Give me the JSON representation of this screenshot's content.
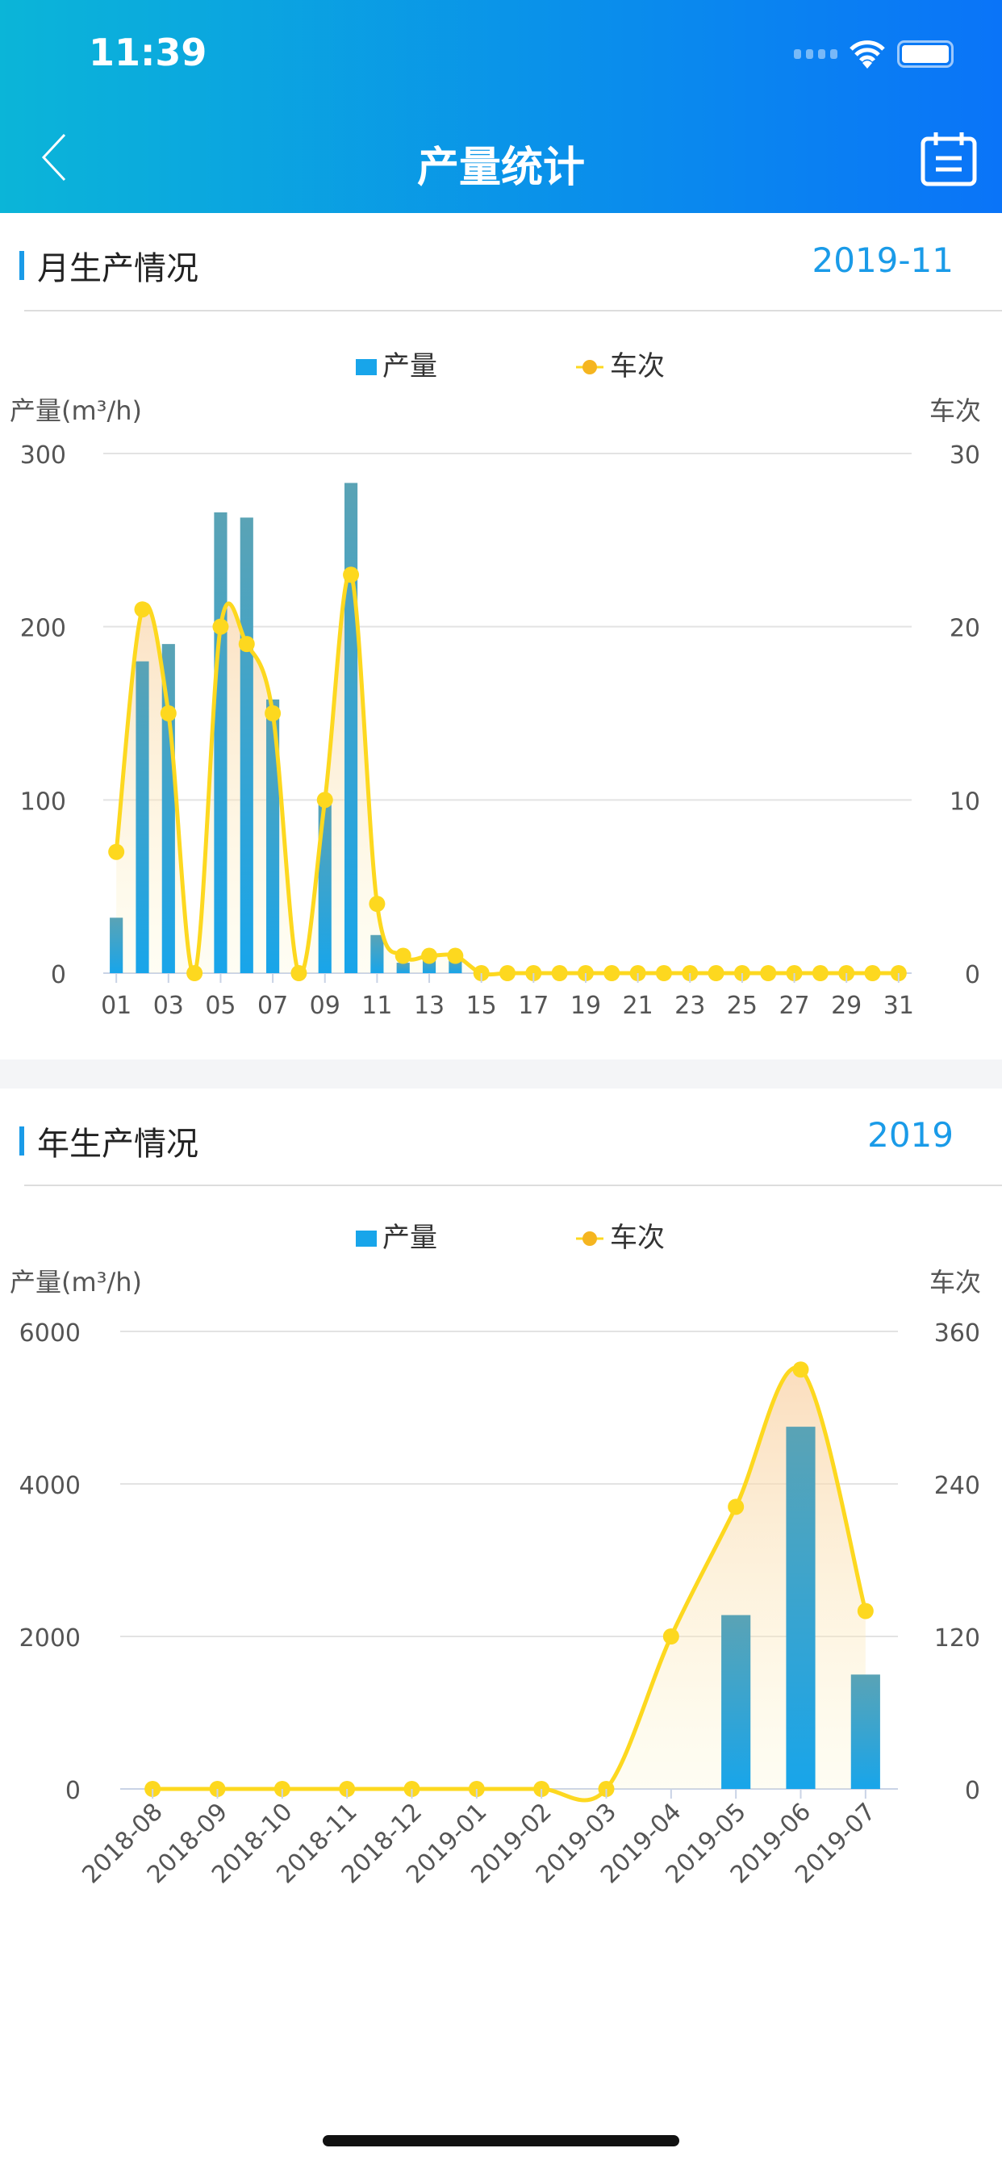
{
  "status_bar": {
    "time": "11:39"
  },
  "nav": {
    "title": "产量统计"
  },
  "monthly": {
    "title": "月生产情况",
    "date": "2019-11"
  },
  "yearly": {
    "title": "年生产情况",
    "date": "2019"
  },
  "chart_data": [
    {
      "type": "bar",
      "legend": [
        "产量",
        "车次"
      ],
      "ylabel": "产量(m³/h)",
      "y2label": "车次",
      "ylim": [
        0,
        300
      ],
      "y2lim": [
        0,
        30
      ],
      "yticks": [
        "0",
        "100",
        "200",
        "300"
      ],
      "y2ticks": [
        "0",
        "10",
        "20",
        "30"
      ],
      "categories": [
        "01",
        "02",
        "03",
        "04",
        "05",
        "06",
        "07",
        "08",
        "09",
        "10",
        "11",
        "12",
        "13",
        "14",
        "15",
        "16",
        "17",
        "18",
        "19",
        "20",
        "21",
        "22",
        "23",
        "24",
        "25",
        "26",
        "27",
        "28",
        "29",
        "30",
        "31"
      ],
      "series": [
        {
          "name": "产量",
          "type": "bar",
          "values": [
            32,
            180,
            190,
            0,
            266,
            263,
            158,
            0,
            100,
            283,
            22,
            6,
            8,
            8,
            0,
            0,
            0,
            0,
            0,
            0,
            0,
            0,
            0,
            0,
            0,
            0,
            0,
            0,
            0,
            0,
            0
          ]
        },
        {
          "name": "车次",
          "type": "line",
          "values": [
            7,
            21,
            15,
            0,
            20,
            19,
            15,
            0,
            10,
            23,
            4,
            1,
            1,
            1,
            0,
            0,
            0,
            0,
            0,
            0,
            0,
            0,
            0,
            0,
            0,
            0,
            0,
            0,
            0,
            0,
            0
          ]
        }
      ],
      "colors": {
        "bar": "#18a5ea",
        "line": "#fdd81f"
      }
    },
    {
      "type": "bar",
      "legend": [
        "产量",
        "车次"
      ],
      "ylabel": "产量(m³/h)",
      "y2label": "车次",
      "ylim": [
        0,
        6000
      ],
      "y2lim": [
        0,
        360
      ],
      "yticks": [
        "0",
        "2000",
        "4000",
        "6000"
      ],
      "y2ticks": [
        "0",
        "120",
        "240",
        "360"
      ],
      "categories": [
        "2018-08",
        "2018-09",
        "2018-10",
        "2018-11",
        "2018-12",
        "2019-01",
        "2019-02",
        "2019-03",
        "2019-04",
        "2019-05",
        "2019-06",
        "2019-07"
      ],
      "series": [
        {
          "name": "产量",
          "type": "bar",
          "values": [
            0,
            0,
            0,
            0,
            0,
            0,
            0,
            0,
            0,
            2280,
            4750,
            1500
          ]
        },
        {
          "name": "车次",
          "type": "line",
          "values": [
            0,
            0,
            0,
            0,
            0,
            0,
            0,
            0,
            120,
            222,
            330,
            140
          ]
        }
      ],
      "colors": {
        "bar": "#18a5ea",
        "line": "#fdd81f"
      }
    }
  ]
}
